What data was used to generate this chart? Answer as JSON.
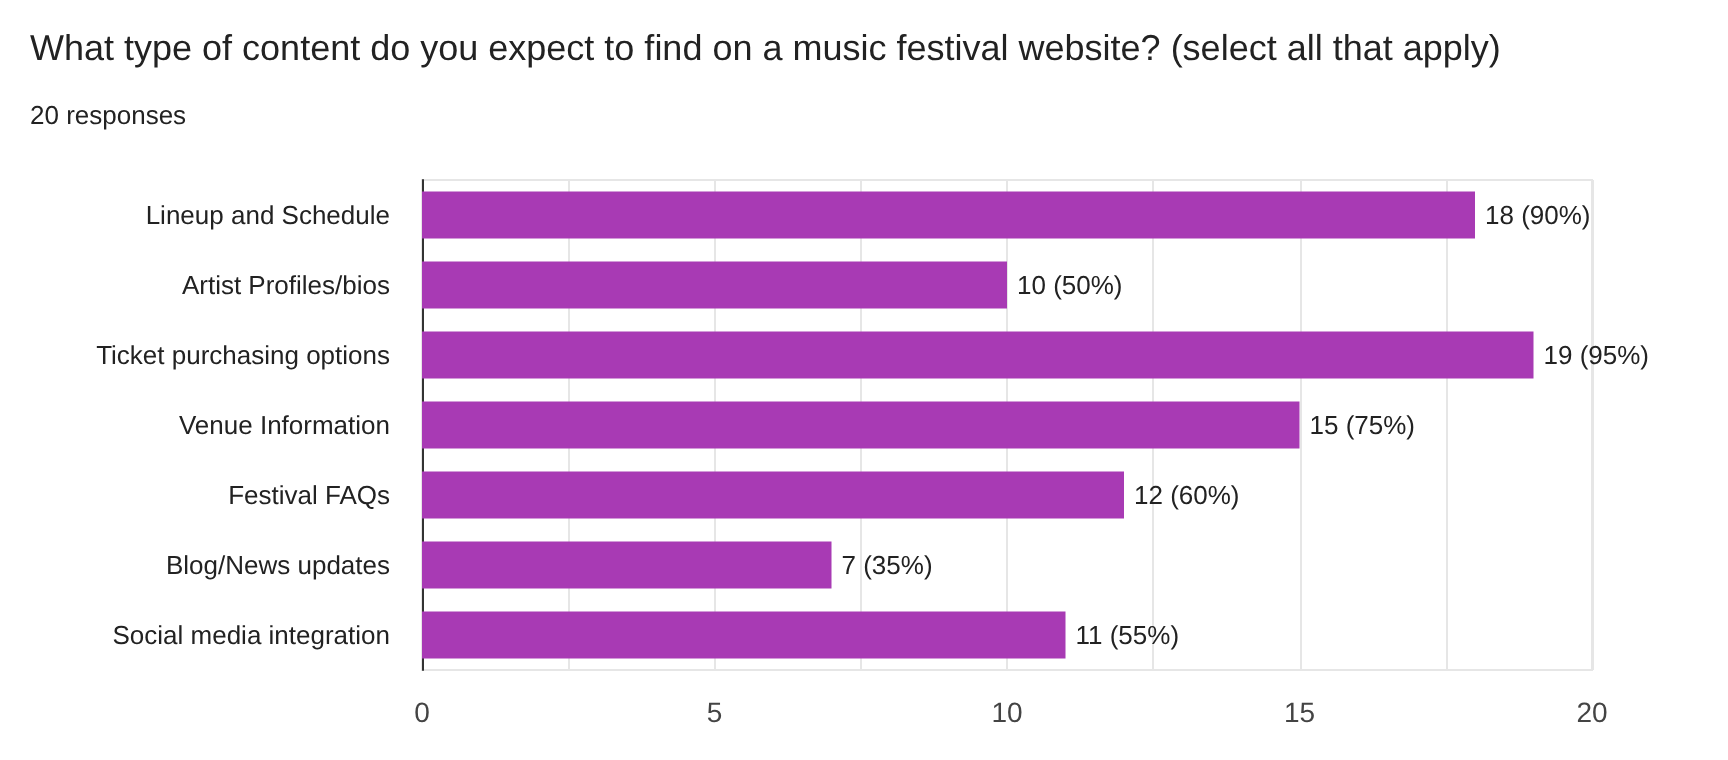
{
  "chart_data": {
    "type": "bar",
    "orientation": "horizontal",
    "title": "What type of content do you expect to find on a music festival website? (select all that apply)",
    "subtitle": "20 responses",
    "categories": [
      "Lineup and Schedule",
      "Artist Profiles/bios",
      "Ticket purchasing options",
      "Venue Information",
      "Festival FAQs",
      "Blog/News updates",
      "Social media integration"
    ],
    "values": [
      18,
      10,
      19,
      15,
      12,
      7,
      11
    ],
    "value_labels": [
      "18 (90%)",
      "10 (50%)",
      "19 (95%)",
      "15 (75%)",
      "12 (60%)",
      "7 (35%)",
      "11 (55%)"
    ],
    "color": "#a83ab4",
    "xlim": [
      0,
      20
    ],
    "xticks": [
      0,
      {
        "value": 2.5,
        "label": null
      },
      5,
      {
        "value": 7.5,
        "label": null
      },
      10,
      {
        "value": 12.5,
        "label": null
      },
      15,
      {
        "value": 17.5,
        "label": null
      },
      20
    ],
    "grid": "x"
  }
}
